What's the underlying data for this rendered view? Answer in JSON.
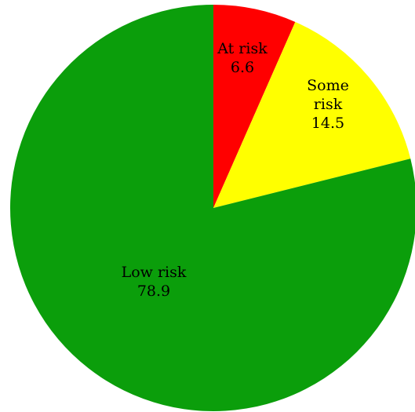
{
  "chart_data": {
    "type": "pie",
    "slices": [
      {
        "label_lines": [
          "At risk"
        ],
        "value_text": "6.6",
        "value": 6.6,
        "color": "#ff0000"
      },
      {
        "label_lines": [
          "Some",
          "risk"
        ],
        "value_text": "14.5",
        "value": 14.5,
        "color": "#ffff00"
      },
      {
        "label_lines": [
          "Low risk"
        ],
        "value_text": "78.9",
        "value": 78.9,
        "color": "#0b9e0b"
      }
    ],
    "start": "12 o'clock",
    "direction": "clockwise",
    "legend": "none",
    "data_labels": "inside slices"
  }
}
